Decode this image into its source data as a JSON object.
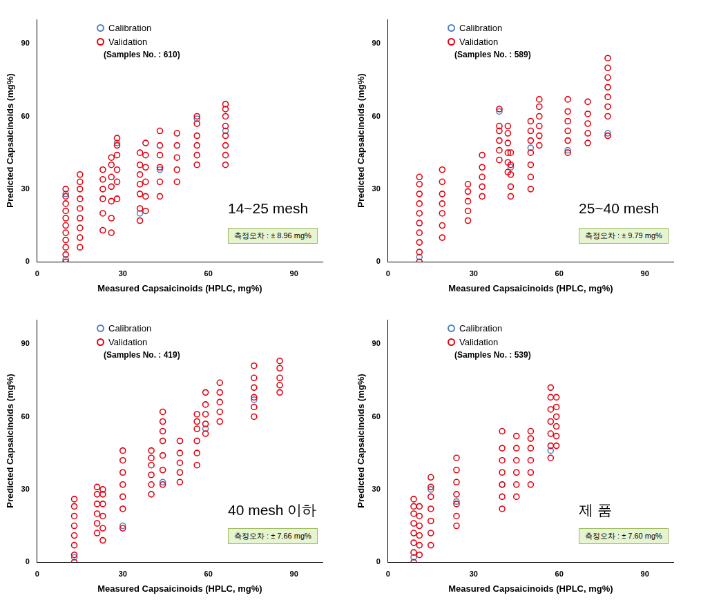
{
  "chart_data": [
    {
      "type": "scatter",
      "x_label": "Measured Capsaicinoids (HPLC, mg%)",
      "y_label": "Predicted Capsaicinoids (mg%)",
      "annotations": [
        "(Samples No. : 610)",
        "14~25 mesh",
        "측정오차 : ± 8.96 mg%"
      ],
      "xlim": [
        0,
        100
      ],
      "ylim": [
        0,
        100
      ],
      "xticks": [
        0,
        30,
        60,
        90
      ],
      "yticks": [
        0,
        30,
        60,
        90
      ],
      "grid": false,
      "legend": "top-left",
      "series": [
        {
          "name": "Calibration",
          "color": "#4f81bd",
          "marker": "circle",
          "x": [
            10,
            10,
            36,
            43,
            66,
            28,
            56
          ],
          "values": [
            1,
            28,
            20,
            38,
            54,
            49,
            59
          ]
        },
        {
          "name": "Validation",
          "color": "#e3000f",
          "marker": "circle",
          "x": [
            10,
            10,
            10,
            10,
            10,
            10,
            10,
            10,
            10,
            10,
            10,
            15,
            15,
            15,
            15,
            15,
            15,
            15,
            15,
            15,
            23,
            23,
            23,
            23,
            23,
            23,
            26,
            26,
            26,
            26,
            26,
            26,
            26,
            28,
            28,
            28,
            28,
            28,
            28,
            36,
            36,
            36,
            36,
            36,
            36,
            36,
            38,
            38,
            38,
            38,
            38,
            38,
            43,
            43,
            43,
            43,
            43,
            43,
            49,
            49,
            49,
            49,
            49,
            56,
            56,
            56,
            56,
            56,
            56,
            66,
            66,
            66,
            66,
            66,
            66,
            66,
            66
          ],
          "values": [
            0,
            3,
            6,
            9,
            12,
            15,
            18,
            21,
            24,
            27,
            30,
            6,
            10,
            14,
            18,
            22,
            26,
            30,
            33,
            36,
            13,
            20,
            26,
            30,
            34,
            38,
            12,
            18,
            25,
            31,
            35,
            40,
            43,
            26,
            33,
            38,
            44,
            48,
            51,
            17,
            22,
            28,
            32,
            36,
            40,
            45,
            21,
            27,
            33,
            39,
            44,
            49,
            27,
            33,
            39,
            44,
            48,
            54,
            33,
            38,
            43,
            48,
            53,
            40,
            44,
            48,
            52,
            57,
            60,
            40,
            44,
            48,
            52,
            56,
            60,
            63,
            65
          ]
        }
      ]
    },
    {
      "type": "scatter",
      "x_label": "Measured Capsaicinoids (HPLC, mg%)",
      "y_label": "Predicted Capsaicinoids (mg%)",
      "annotations": [
        "(Samples No. : 589)",
        "25~40 mesh",
        "측정오차 : ± 9.79 mg%"
      ],
      "xlim": [
        0,
        100
      ],
      "ylim": [
        0,
        100
      ],
      "xticks": [
        0,
        30,
        60,
        90
      ],
      "yticks": [
        0,
        30,
        60,
        90
      ],
      "grid": false,
      "legend": "top-left",
      "series": [
        {
          "name": "Calibration",
          "color": "#4f81bd",
          "marker": "circle",
          "x": [
            11,
            39,
            50,
            63,
            77,
            43
          ],
          "values": [
            2,
            62,
            47,
            46,
            53,
            39
          ]
        },
        {
          "name": "Validation",
          "color": "#e3000f",
          "marker": "circle",
          "x": [
            11,
            11,
            11,
            11,
            11,
            11,
            11,
            11,
            11,
            11,
            19,
            19,
            19,
            19,
            19,
            19,
            19,
            28,
            28,
            28,
            28,
            28,
            33,
            33,
            33,
            33,
            33,
            39,
            39,
            39,
            39,
            39,
            39,
            42,
            42,
            42,
            42,
            42,
            42,
            43,
            43,
            43,
            43,
            43,
            50,
            50,
            50,
            50,
            50,
            50,
            50,
            53,
            53,
            53,
            53,
            53,
            53,
            63,
            63,
            63,
            63,
            63,
            63,
            70,
            70,
            70,
            70,
            70,
            77,
            77,
            77,
            77,
            77,
            77,
            77,
            77
          ],
          "values": [
            0,
            4,
            8,
            12,
            16,
            20,
            24,
            28,
            32,
            35,
            10,
            15,
            20,
            24,
            28,
            33,
            38,
            17,
            21,
            25,
            29,
            32,
            27,
            31,
            35,
            39,
            44,
            42,
            46,
            50,
            54,
            56,
            63,
            37,
            41,
            45,
            49,
            53,
            56,
            27,
            31,
            36,
            40,
            45,
            30,
            35,
            40,
            45,
            50,
            54,
            58,
            48,
            52,
            56,
            60,
            64,
            67,
            45,
            50,
            54,
            58,
            62,
            67,
            49,
            53,
            57,
            61,
            66,
            52,
            60,
            64,
            68,
            72,
            76,
            80,
            84
          ]
        }
      ]
    },
    {
      "type": "scatter",
      "x_label": "Measured Capsaicinoids (HPLC, mg%)",
      "y_label": "Predicted Capsaicinoids (mg%)",
      "annotations": [
        "(Samples No. : 419)",
        "40 mesh 이하",
        "측정오차 : ± 7.66 mg%"
      ],
      "xlim": [
        0,
        100
      ],
      "ylim": [
        0,
        100
      ],
      "xticks": [
        0,
        30,
        60,
        90
      ],
      "yticks": [
        0,
        30,
        60,
        90
      ],
      "grid": false,
      "legend": "top-left",
      "series": [
        {
          "name": "Calibration",
          "color": "#4f81bd",
          "marker": "circle",
          "x": [
            13,
            30,
            44,
            76,
            59
          ],
          "values": [
            2,
            15,
            33,
            67,
            55
          ]
        },
        {
          "name": "Validation",
          "color": "#e3000f",
          "marker": "circle",
          "x": [
            13,
            13,
            13,
            13,
            13,
            13,
            13,
            13,
            21,
            21,
            21,
            21,
            21,
            21,
            23,
            23,
            23,
            23,
            23,
            23,
            30,
            30,
            30,
            30,
            30,
            30,
            30,
            40,
            40,
            40,
            40,
            40,
            40,
            44,
            44,
            44,
            44,
            44,
            44,
            44,
            50,
            50,
            50,
            50,
            50,
            56,
            56,
            56,
            56,
            56,
            56,
            59,
            59,
            59,
            59,
            59,
            64,
            64,
            64,
            64,
            64,
            76,
            76,
            76,
            76,
            76,
            76,
            85,
            85,
            85,
            85,
            85
          ],
          "values": [
            0,
            3,
            7,
            11,
            15,
            19,
            23,
            26,
            12,
            16,
            20,
            24,
            28,
            31,
            9,
            14,
            19,
            24,
            28,
            30,
            14,
            22,
            27,
            32,
            37,
            42,
            46,
            28,
            32,
            36,
            40,
            43,
            46,
            32,
            38,
            44,
            50,
            54,
            58,
            62,
            33,
            37,
            41,
            45,
            50,
            40,
            45,
            50,
            55,
            58,
            61,
            53,
            57,
            61,
            65,
            70,
            58,
            62,
            66,
            70,
            74,
            60,
            64,
            68,
            72,
            76,
            81,
            70,
            73,
            76,
            80,
            83
          ]
        }
      ]
    },
    {
      "type": "scatter",
      "x_label": "Measured Capsaicinoids (HPLC, mg%)",
      "y_label": "Predicted Capsaicinoids (mg%)",
      "annotations": [
        "(Samples No. : 539)",
        "제 품",
        "측정오차 : ± 7.60 mg%"
      ],
      "xlim": [
        0,
        100
      ],
      "ylim": [
        0,
        100
      ],
      "xticks": [
        0,
        30,
        60,
        90
      ],
      "yticks": [
        0,
        30,
        60,
        90
      ],
      "grid": false,
      "legend": "top-left",
      "series": [
        {
          "name": "Calibration",
          "color": "#4f81bd",
          "marker": "circle",
          "x": [
            9,
            24,
            40,
            57,
            15
          ],
          "values": [
            2,
            25,
            32,
            46,
            30
          ]
        },
        {
          "name": "Validation",
          "color": "#e3000f",
          "marker": "circle",
          "x": [
            9,
            9,
            9,
            9,
            9,
            9,
            9,
            9,
            11,
            11,
            11,
            11,
            11,
            11,
            15,
            15,
            15,
            15,
            15,
            15,
            15,
            24,
            24,
            24,
            24,
            24,
            24,
            24,
            40,
            40,
            40,
            40,
            40,
            40,
            40,
            45,
            45,
            45,
            45,
            45,
            45,
            50,
            50,
            50,
            50,
            50,
            50,
            57,
            57,
            57,
            57,
            57,
            57,
            57,
            59,
            59,
            59,
            59,
            59,
            59
          ],
          "values": [
            0,
            4,
            8,
            12,
            16,
            20,
            23,
            26,
            3,
            7,
            11,
            15,
            19,
            23,
            7,
            12,
            17,
            22,
            27,
            31,
            35,
            15,
            19,
            24,
            28,
            33,
            38,
            43,
            22,
            27,
            32,
            37,
            42,
            47,
            54,
            27,
            32,
            37,
            42,
            47,
            52,
            32,
            37,
            42,
            47,
            51,
            54,
            43,
            48,
            53,
            58,
            63,
            68,
            72,
            48,
            52,
            56,
            60,
            64,
            68
          ]
        }
      ]
    }
  ]
}
